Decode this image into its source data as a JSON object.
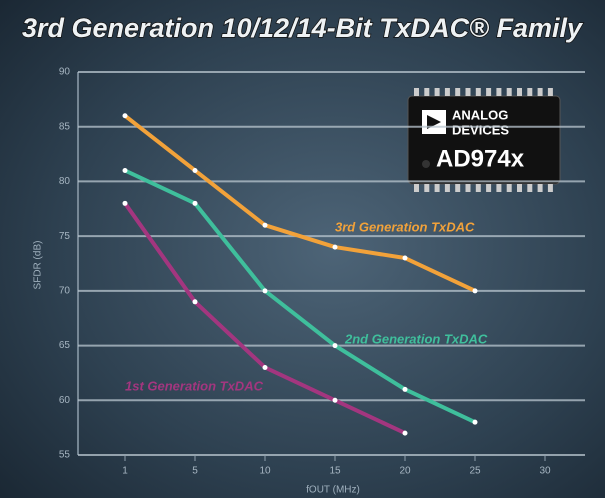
{
  "chart_data": {
    "type": "line",
    "title": "3rd Generation 10/12/14-Bit TxDAC® Family",
    "x_label": "fOUT (MHz)",
    "y_label": "SFDR (dB)",
    "categories": [
      "1",
      "5",
      "10",
      "15",
      "20",
      "25",
      "30"
    ],
    "series": [
      {
        "name": "3rd Generation TxDAC",
        "color": "#f2a23a",
        "values": [
          86,
          81,
          76,
          74,
          73,
          70,
          null
        ]
      },
      {
        "name": "2nd Generation TxDAC",
        "color": "#3fbf9c",
        "values": [
          81,
          78,
          70,
          65,
          61,
          58,
          null
        ]
      },
      {
        "name": "1st Generation TxDAC",
        "color": "#a3367f",
        "values": [
          78,
          69,
          63,
          60,
          57,
          null,
          null
        ]
      }
    ],
    "ylim": [
      55,
      90
    ],
    "yticks": [
      55,
      60,
      65,
      70,
      75,
      80,
      85,
      90
    ],
    "grid": true,
    "annotations": [
      "ANALOG",
      "DEVICES",
      "AD974x"
    ]
  }
}
